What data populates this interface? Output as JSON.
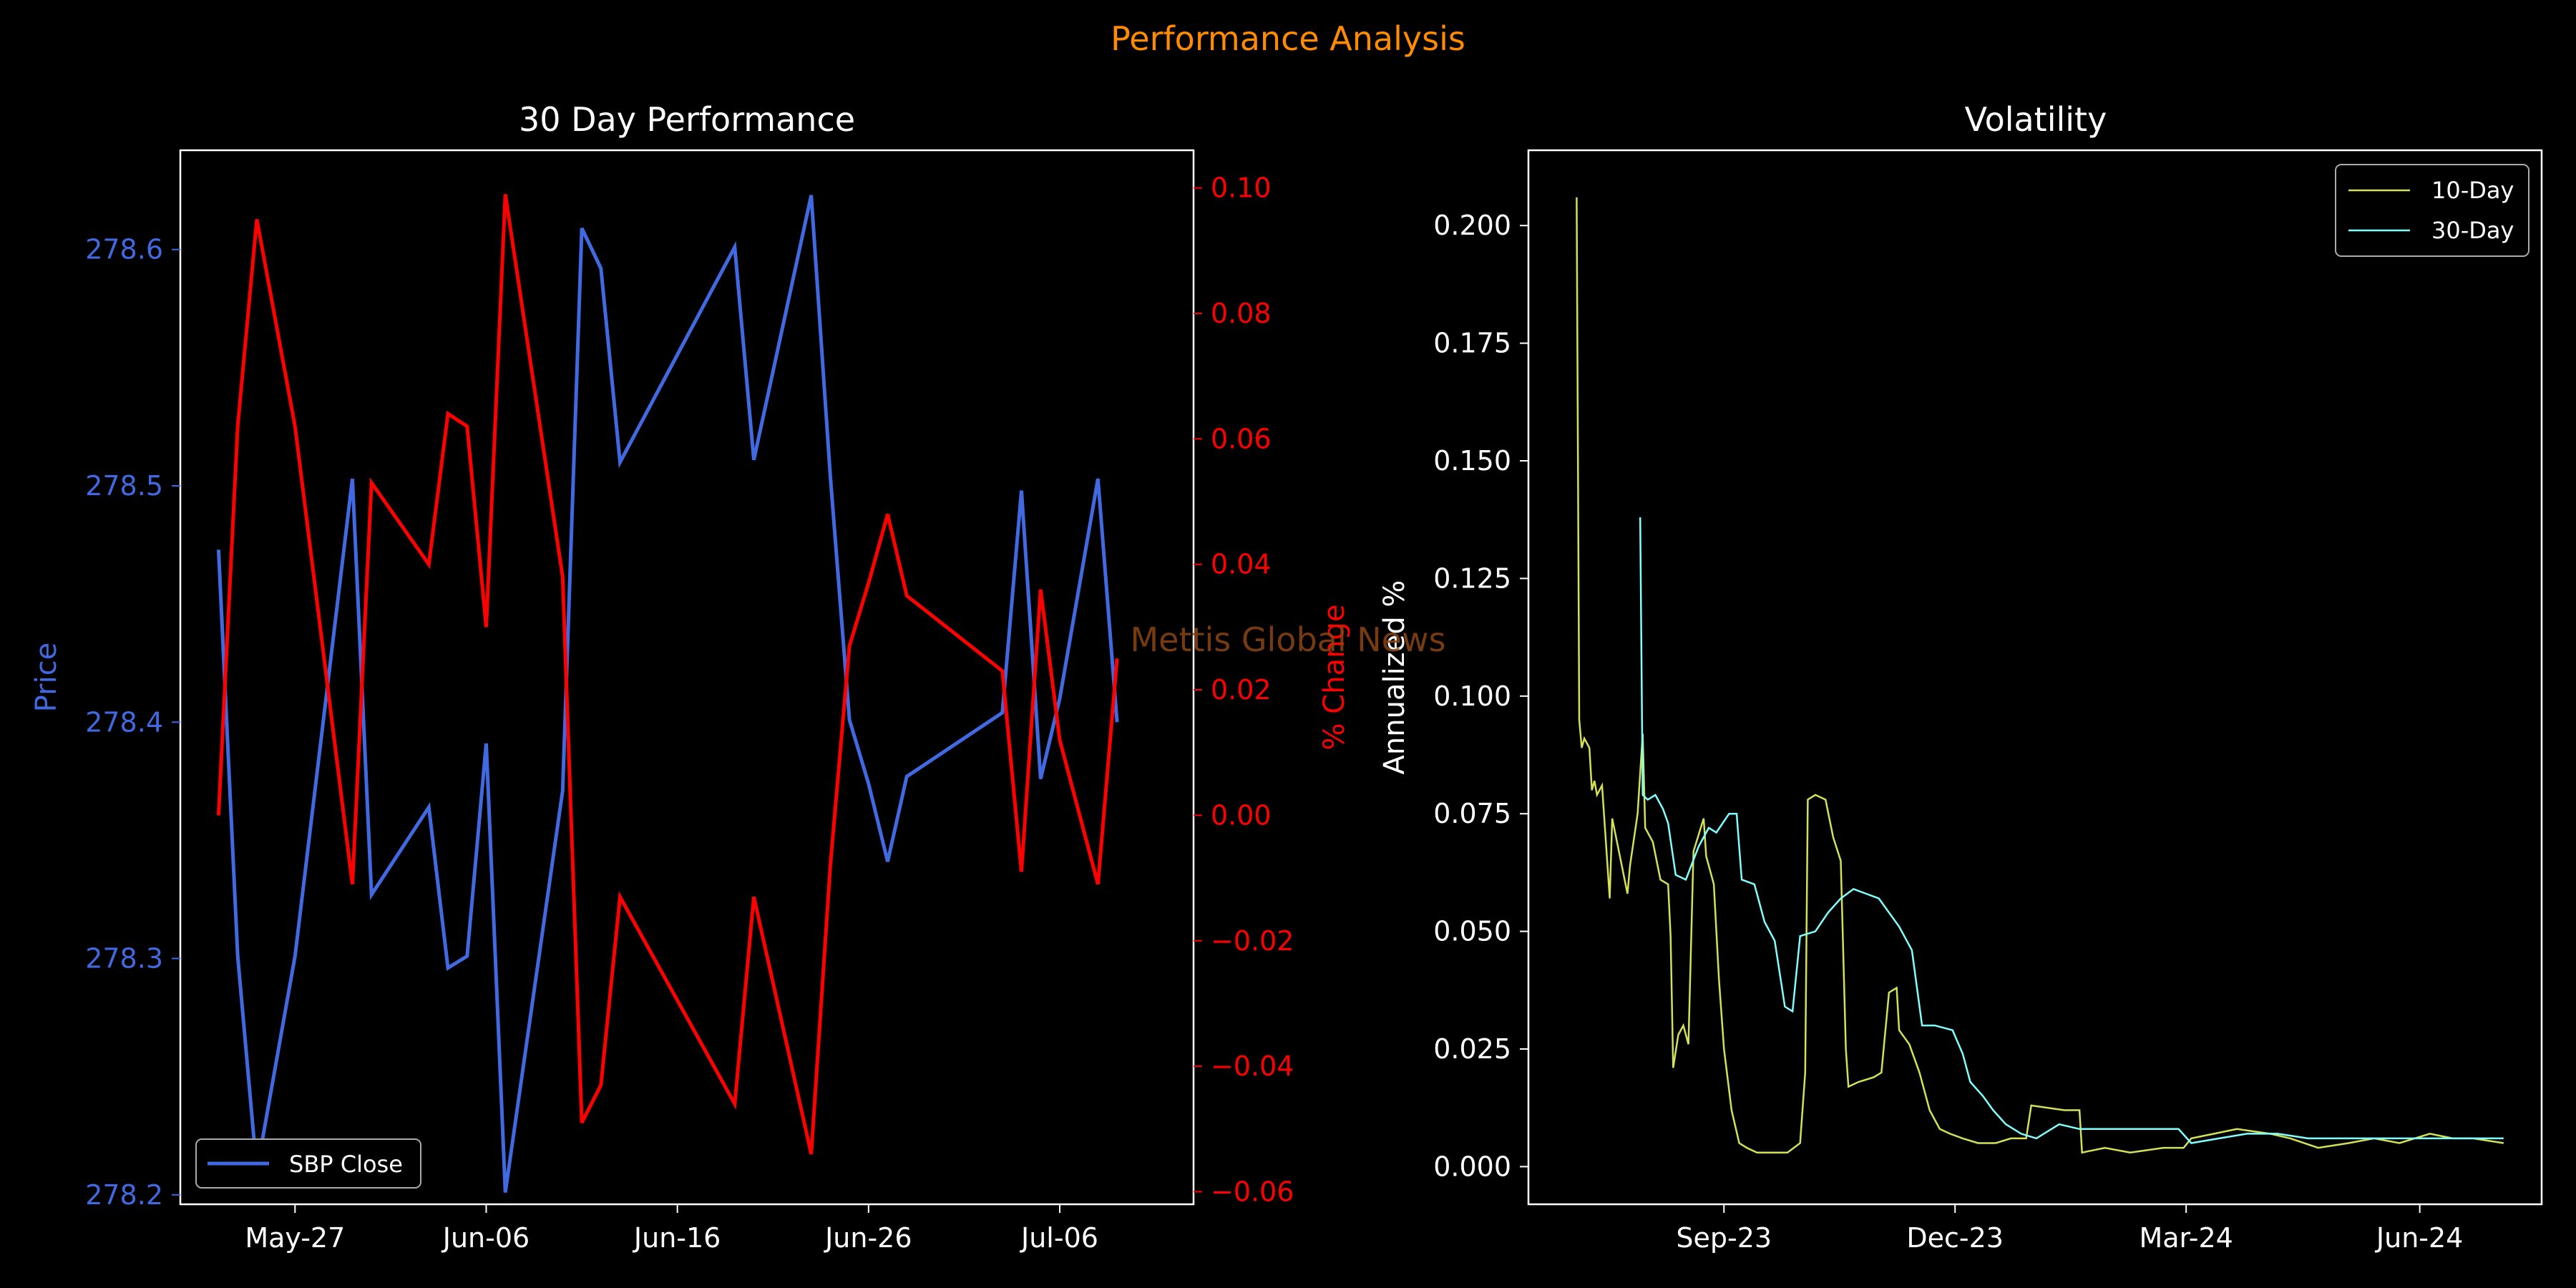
{
  "figure": {
    "title": "Performance Analysis",
    "title_color": "#ff8c00",
    "background": "#000000",
    "watermark": "Mettis Global News",
    "watermark_color": "#8b4513"
  },
  "chart_data": [
    {
      "type": "line",
      "title": "30 Day Performance",
      "x_type": "date",
      "x_ticks": [
        "2024-05-27",
        "2024-06-06",
        "2024-06-16",
        "2024-06-26",
        "2024-07-06"
      ],
      "x_tick_labels": [
        "May-27",
        "Jun-06",
        "Jun-16",
        "Jun-26",
        "Jul-06"
      ],
      "xlim": [
        "2024-05-21",
        "2024-07-13"
      ],
      "ylabel": "Price",
      "ylabel_color": "#4169e1",
      "ylim": [
        278.196,
        278.642
      ],
      "y_ticks": [
        278.2,
        278.3,
        278.4,
        278.5,
        278.6
      ],
      "y_tick_labels": [
        "278.2",
        "278.3",
        "278.4",
        "278.5",
        "278.6"
      ],
      "y2label": "% Change",
      "y2label_color": "#ff0000",
      "y2lim": [
        -0.062,
        0.106
      ],
      "y2_ticks": [
        -0.06,
        -0.04,
        -0.02,
        0.0,
        0.02,
        0.04,
        0.06,
        0.08,
        0.1
      ],
      "y2_tick_labels": [
        "−0.06",
        "−0.04",
        "−0.02",
        "0.00",
        "0.02",
        "0.04",
        "0.06",
        "0.08",
        "0.10"
      ],
      "legend": {
        "entries": [
          "SBP Close"
        ],
        "placement": "lower-left"
      },
      "series": [
        {
          "name": "SBP Close",
          "axis": "left",
          "color": "#4169e1",
          "x": [
            "2024-05-23",
            "2024-05-24",
            "2024-05-25",
            "2024-05-27",
            "2024-05-30",
            "2024-05-31",
            "2024-06-03",
            "2024-06-04",
            "2024-06-05",
            "2024-06-06",
            "2024-06-07",
            "2024-06-10",
            "2024-06-11",
            "2024-06-12",
            "2024-06-13",
            "2024-06-19",
            "2024-06-20",
            "2024-06-23",
            "2024-06-24",
            "2024-06-25",
            "2024-06-26",
            "2024-06-27",
            "2024-06-28",
            "2024-07-03",
            "2024-07-04",
            "2024-07-05",
            "2024-07-06",
            "2024-07-08",
            "2024-07-09"
          ],
          "y": [
            278.473,
            278.301,
            278.21,
            278.301,
            278.503,
            278.327,
            278.364,
            278.296,
            278.301,
            278.391,
            278.201,
            278.371,
            278.609,
            278.592,
            278.51,
            278.601,
            278.511,
            278.623,
            278.504,
            278.401,
            278.374,
            278.341,
            278.377,
            278.404,
            278.498,
            278.376,
            278.41,
            278.503,
            278.4
          ]
        },
        {
          "name": "% Change",
          "axis": "right",
          "color": "#ff0000",
          "x": [
            "2024-05-23",
            "2024-05-24",
            "2024-05-25",
            "2024-05-27",
            "2024-05-30",
            "2024-05-31",
            "2024-06-03",
            "2024-06-04",
            "2024-06-05",
            "2024-06-06",
            "2024-06-07",
            "2024-06-10",
            "2024-06-11",
            "2024-06-12",
            "2024-06-13",
            "2024-06-19",
            "2024-06-20",
            "2024-06-23",
            "2024-06-24",
            "2024-06-25",
            "2024-06-26",
            "2024-06-27",
            "2024-06-28",
            "2024-07-03",
            "2024-07-04",
            "2024-07-05",
            "2024-07-06",
            "2024-07-08",
            "2024-07-09"
          ],
          "y": [
            0.0,
            0.062,
            0.095,
            0.062,
            -0.011,
            0.053,
            0.04,
            0.064,
            0.062,
            0.03,
            0.099,
            0.038,
            -0.049,
            -0.043,
            -0.013,
            -0.046,
            -0.013,
            -0.054,
            -0.008,
            0.027,
            0.037,
            0.048,
            0.035,
            0.023,
            -0.009,
            0.036,
            0.012,
            -0.011,
            0.025
          ]
        }
      ]
    },
    {
      "type": "line",
      "title": "Volatility",
      "x_type": "date",
      "x_ticks": [
        "2023-09-23",
        "2023-12-23",
        "2024-03-23",
        "2024-06-23"
      ],
      "x_tick_labels": [
        "Sep-23",
        "Dec-23",
        "Mar-24",
        "Jun-24"
      ],
      "xlim": [
        "2023-07-08",
        "2024-08-10"
      ],
      "ylabel": "Annualized %",
      "ylim": [
        -0.008,
        0.216
      ],
      "y_ticks": [
        0,
        0.025,
        0.05,
        0.075,
        0.1,
        0.125,
        0.15,
        0.175,
        0.2
      ],
      "y_tick_labels": [
        "0.000",
        "0.025",
        "0.050",
        "0.075",
        "0.100",
        "0.125",
        "0.150",
        "0.175",
        "0.200"
      ],
      "legend": {
        "entries": [
          "10-Day",
          "30-Day"
        ],
        "placement": "upper-right"
      },
      "series": [
        {
          "name": "10-Day",
          "color": "#d4e157",
          "points": [
            [
              "2023-07-27",
              0.206
            ],
            [
              "2023-07-28",
              0.095
            ],
            [
              "2023-07-29",
              0.089
            ],
            [
              "2023-07-30",
              0.091
            ],
            [
              "2023-08-01",
              0.089
            ],
            [
              "2023-08-02",
              0.08
            ],
            [
              "2023-08-03",
              0.082
            ],
            [
              "2023-08-04",
              0.079
            ],
            [
              "2023-08-06",
              0.081
            ],
            [
              "2023-08-09",
              0.057
            ],
            [
              "2023-08-10",
              0.074
            ],
            [
              "2023-08-13",
              0.066
            ],
            [
              "2023-08-16",
              0.058
            ],
            [
              "2023-08-17",
              0.064
            ],
            [
              "2023-08-20",
              0.075
            ],
            [
              "2023-08-22",
              0.092
            ],
            [
              "2023-08-23",
              0.072
            ],
            [
              "2023-08-26",
              0.069
            ],
            [
              "2023-08-29",
              0.061
            ],
            [
              "2023-09-01",
              0.06
            ],
            [
              "2023-09-02",
              0.049
            ],
            [
              "2023-09-03",
              0.021
            ],
            [
              "2023-09-05",
              0.028
            ],
            [
              "2023-09-07",
              0.03
            ],
            [
              "2023-09-09",
              0.026
            ],
            [
              "2023-09-11",
              0.067
            ],
            [
              "2023-09-15",
              0.074
            ],
            [
              "2023-09-16",
              0.066
            ],
            [
              "2023-09-19",
              0.06
            ],
            [
              "2023-09-21",
              0.04
            ],
            [
              "2023-09-23",
              0.025
            ],
            [
              "2023-09-26",
              0.012
            ],
            [
              "2023-09-29",
              0.005
            ],
            [
              "2023-10-02",
              0.004
            ],
            [
              "2023-10-06",
              0.003
            ],
            [
              "2023-10-12",
              0.003
            ],
            [
              "2023-10-18",
              0.003
            ],
            [
              "2023-10-23",
              0.005
            ],
            [
              "2023-10-25",
              0.02
            ],
            [
              "2023-10-26",
              0.078
            ],
            [
              "2023-10-29",
              0.079
            ],
            [
              "2023-11-02",
              0.078
            ],
            [
              "2023-11-05",
              0.07
            ],
            [
              "2023-11-08",
              0.065
            ],
            [
              "2023-11-10",
              0.025
            ],
            [
              "2023-11-11",
              0.017
            ],
            [
              "2023-11-15",
              0.018
            ],
            [
              "2023-11-21",
              0.019
            ],
            [
              "2023-11-24",
              0.02
            ],
            [
              "2023-11-27",
              0.037
            ],
            [
              "2023-11-30",
              0.038
            ],
            [
              "2023-12-01",
              0.029
            ],
            [
              "2023-12-05",
              0.026
            ],
            [
              "2023-12-09",
              0.02
            ],
            [
              "2023-12-13",
              0.012
            ],
            [
              "2023-12-17",
              0.008
            ],
            [
              "2023-12-21",
              0.007
            ],
            [
              "2023-12-26",
              0.006
            ],
            [
              "2024-01-01",
              0.005
            ],
            [
              "2024-01-08",
              0.005
            ],
            [
              "2024-01-14",
              0.006
            ],
            [
              "2024-01-20",
              0.006
            ],
            [
              "2024-01-22",
              0.013
            ],
            [
              "2024-02-04",
              0.012
            ],
            [
              "2024-02-10",
              0.012
            ],
            [
              "2024-02-11",
              0.003
            ],
            [
              "2024-02-20",
              0.004
            ],
            [
              "2024-03-01",
              0.003
            ],
            [
              "2024-03-14",
              0.004
            ],
            [
              "2024-03-22",
              0.004
            ],
            [
              "2024-03-25",
              0.006
            ],
            [
              "2024-04-03",
              0.007
            ],
            [
              "2024-04-12",
              0.008
            ],
            [
              "2024-04-25",
              0.007
            ],
            [
              "2024-05-03",
              0.006
            ],
            [
              "2024-05-14",
              0.004
            ],
            [
              "2024-05-26",
              0.005
            ],
            [
              "2024-06-05",
              0.006
            ],
            [
              "2024-06-15",
              0.005
            ],
            [
              "2024-06-27",
              0.007
            ],
            [
              "2024-07-06",
              0.006
            ],
            [
              "2024-07-14",
              0.006
            ],
            [
              "2024-07-26",
              0.005
            ]
          ]
        },
        {
          "name": "30-Day",
          "color": "#80ffff",
          "points": [
            [
              "2023-08-21",
              0.138
            ],
            [
              "2023-08-22",
              0.079
            ],
            [
              "2023-08-24",
              0.078
            ],
            [
              "2023-08-27",
              0.079
            ],
            [
              "2023-08-30",
              0.076
            ],
            [
              "2023-09-01",
              0.073
            ],
            [
              "2023-09-04",
              0.062
            ],
            [
              "2023-09-08",
              0.061
            ],
            [
              "2023-09-13",
              0.068
            ],
            [
              "2023-09-17",
              0.072
            ],
            [
              "2023-09-20",
              0.071
            ],
            [
              "2023-09-25",
              0.075
            ],
            [
              "2023-09-28",
              0.075
            ],
            [
              "2023-09-30",
              0.061
            ],
            [
              "2023-10-05",
              0.06
            ],
            [
              "2023-10-09",
              0.052
            ],
            [
              "2023-10-13",
              0.048
            ],
            [
              "2023-10-17",
              0.034
            ],
            [
              "2023-10-20",
              0.033
            ],
            [
              "2023-10-23",
              0.049
            ],
            [
              "2023-10-29",
              0.05
            ],
            [
              "2023-11-03",
              0.054
            ],
            [
              "2023-11-08",
              0.057
            ],
            [
              "2023-11-13",
              0.059
            ],
            [
              "2023-11-18",
              0.058
            ],
            [
              "2023-11-23",
              0.057
            ],
            [
              "2023-11-27",
              0.054
            ],
            [
              "2023-12-01",
              0.051
            ],
            [
              "2023-12-06",
              0.046
            ],
            [
              "2023-12-10",
              0.03
            ],
            [
              "2023-12-15",
              0.03
            ],
            [
              "2023-12-22",
              0.029
            ],
            [
              "2023-12-26",
              0.024
            ],
            [
              "2023-12-29",
              0.018
            ],
            [
              "2024-01-03",
              0.015
            ],
            [
              "2024-01-07",
              0.012
            ],
            [
              "2024-01-12",
              0.009
            ],
            [
              "2024-01-18",
              0.007
            ],
            [
              "2024-01-24",
              0.006
            ],
            [
              "2024-02-02",
              0.009
            ],
            [
              "2024-02-10",
              0.008
            ],
            [
              "2024-02-20",
              0.008
            ],
            [
              "2024-03-01",
              0.008
            ],
            [
              "2024-03-10",
              0.008
            ],
            [
              "2024-03-20",
              0.008
            ],
            [
              "2024-03-25",
              0.005
            ],
            [
              "2024-04-05",
              0.006
            ],
            [
              "2024-04-16",
              0.007
            ],
            [
              "2024-04-28",
              0.007
            ],
            [
              "2024-05-10",
              0.006
            ],
            [
              "2024-05-24",
              0.006
            ],
            [
              "2024-06-06",
              0.006
            ],
            [
              "2024-06-18",
              0.006
            ],
            [
              "2024-06-30",
              0.006
            ],
            [
              "2024-07-12",
              0.006
            ],
            [
              "2024-07-26",
              0.006
            ]
          ]
        }
      ]
    }
  ]
}
